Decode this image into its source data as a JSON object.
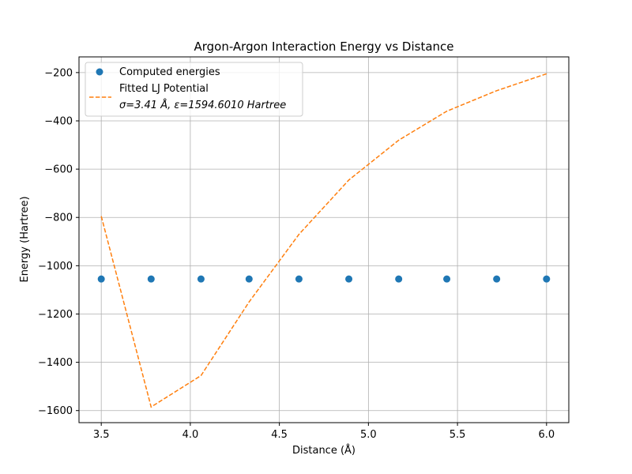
{
  "chart_data": {
    "type": "scatter",
    "title": "Argon-Argon Interaction Energy vs Distance",
    "xlabel": "Distance (Å)",
    "ylabel": "Energy (Hartree)",
    "xlim": [
      3.375,
      6.125
    ],
    "ylim": [
      -1650,
      -135
    ],
    "xticks": [
      3.5,
      4.0,
      4.5,
      5.0,
      5.5,
      6.0
    ],
    "xtick_labels": [
      "3.5",
      "4.0",
      "4.5",
      "5.0",
      "5.5",
      "6.0"
    ],
    "yticks": [
      -200,
      -400,
      -600,
      -800,
      -1000,
      -1200,
      -1400,
      -1600
    ],
    "ytick_labels": [
      "−200",
      "−400",
      "−600",
      "−800",
      "−1000",
      "−1200",
      "−1400",
      "−1600"
    ],
    "grid": true,
    "legend_position": "top-left",
    "series": [
      {
        "name": "Computed energies",
        "kind": "scatter",
        "color": "#1f77b4",
        "x": [
          3.5,
          3.78,
          4.06,
          4.33,
          4.61,
          4.89,
          5.17,
          5.44,
          5.72,
          6.0
        ],
        "y": [
          -1055,
          -1055,
          -1055,
          -1055,
          -1055,
          -1055,
          -1055,
          -1055,
          -1055,
          -1055
        ]
      },
      {
        "name": "Fitted LJ Potential",
        "name_line2_sigma": "σ=3.41 Å, ",
        "name_line2_epsilon": "ε=1594.6010 Hartree",
        "kind": "line",
        "style": "dashed",
        "color": "#ff7f0e",
        "x": [
          3.5,
          3.78,
          4.06,
          4.33,
          4.61,
          4.89,
          5.17,
          5.44,
          5.72,
          6.0
        ],
        "y": [
          -795,
          -1585,
          -1455,
          -1150,
          -870,
          -645,
          -480,
          -360,
          -275,
          -205
        ]
      }
    ]
  }
}
